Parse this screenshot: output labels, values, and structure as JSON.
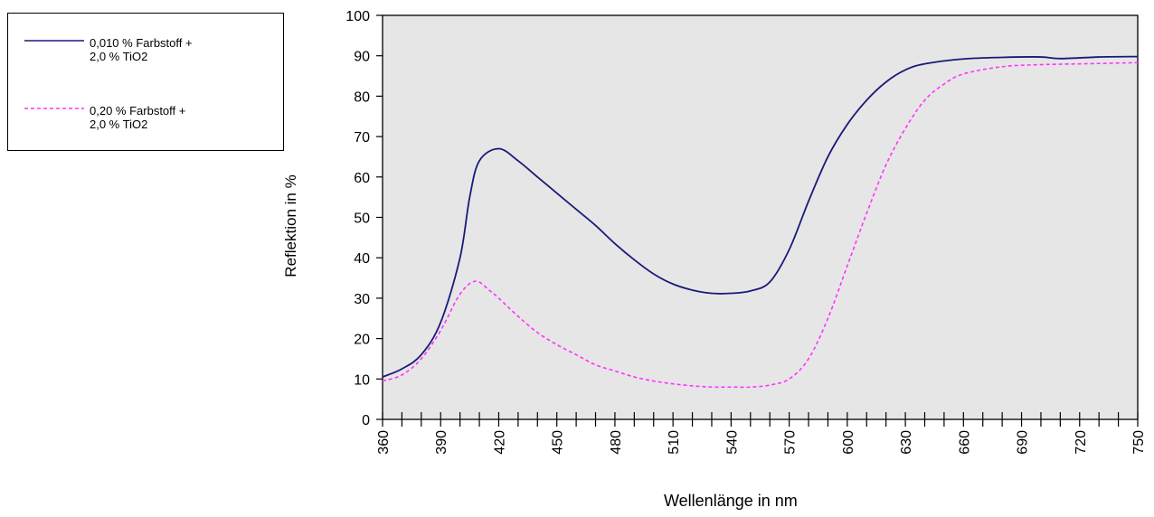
{
  "chart_data": {
    "type": "line",
    "xlabel": "Wellenlänge in nm",
    "ylabel": "Reflektion in %",
    "xlim": [
      360,
      750
    ],
    "ylim": [
      0,
      100
    ],
    "x_ticks": [
      "360",
      "390",
      "420",
      "450",
      "480",
      "510",
      "540",
      "570",
      "600",
      "630",
      "660",
      "690",
      "720",
      "750"
    ],
    "y_ticks": [
      "0",
      "10",
      "20",
      "30",
      "40",
      "50",
      "60",
      "70",
      "80",
      "90",
      "100"
    ],
    "grid": false,
    "plot_background": "#e6e6e6",
    "legend_position": "left",
    "series": [
      {
        "name": "0,010 % Farbstoff +\n2,0 % TiO2",
        "color": "#1a1a7a",
        "line_style": "solid",
        "points": [
          [
            360,
            10.5
          ],
          [
            370,
            12.5
          ],
          [
            380,
            16
          ],
          [
            390,
            24
          ],
          [
            400,
            40
          ],
          [
            405,
            55
          ],
          [
            410,
            64
          ],
          [
            420,
            67
          ],
          [
            430,
            64
          ],
          [
            440,
            60
          ],
          [
            450,
            56
          ],
          [
            460,
            52
          ],
          [
            470,
            48
          ],
          [
            480,
            43.5
          ],
          [
            490,
            39.5
          ],
          [
            500,
            36
          ],
          [
            510,
            33.5
          ],
          [
            520,
            32
          ],
          [
            530,
            31.2
          ],
          [
            540,
            31.2
          ],
          [
            550,
            31.8
          ],
          [
            560,
            34
          ],
          [
            570,
            42
          ],
          [
            580,
            54
          ],
          [
            590,
            65
          ],
          [
            600,
            73
          ],
          [
            610,
            79
          ],
          [
            620,
            83.5
          ],
          [
            630,
            86.5
          ],
          [
            640,
            88
          ],
          [
            660,
            89.2
          ],
          [
            680,
            89.6
          ],
          [
            700,
            89.7
          ],
          [
            710,
            89.3
          ],
          [
            730,
            89.7
          ],
          [
            750,
            89.8
          ]
        ]
      },
      {
        "name": "0,20 % Farbstoff +\n2,0 % TiO2",
        "color": "#ff33ff",
        "line_style": "dashed",
        "points": [
          [
            360,
            9.5
          ],
          [
            370,
            11
          ],
          [
            380,
            15
          ],
          [
            390,
            22
          ],
          [
            400,
            31
          ],
          [
            408,
            34.2
          ],
          [
            415,
            32
          ],
          [
            420,
            30
          ],
          [
            430,
            25.5
          ],
          [
            440,
            21.5
          ],
          [
            450,
            18.5
          ],
          [
            460,
            16
          ],
          [
            470,
            13.5
          ],
          [
            480,
            12
          ],
          [
            490,
            10.5
          ],
          [
            500,
            9.5
          ],
          [
            510,
            8.8
          ],
          [
            520,
            8.3
          ],
          [
            530,
            8
          ],
          [
            540,
            8
          ],
          [
            550,
            8
          ],
          [
            560,
            8.5
          ],
          [
            570,
            10
          ],
          [
            580,
            15
          ],
          [
            590,
            25
          ],
          [
            600,
            38
          ],
          [
            610,
            51
          ],
          [
            620,
            63
          ],
          [
            630,
            72
          ],
          [
            640,
            79
          ],
          [
            650,
            83
          ],
          [
            660,
            85.5
          ],
          [
            680,
            87.3
          ],
          [
            700,
            87.8
          ],
          [
            720,
            88
          ],
          [
            750,
            88.3
          ]
        ]
      }
    ]
  }
}
